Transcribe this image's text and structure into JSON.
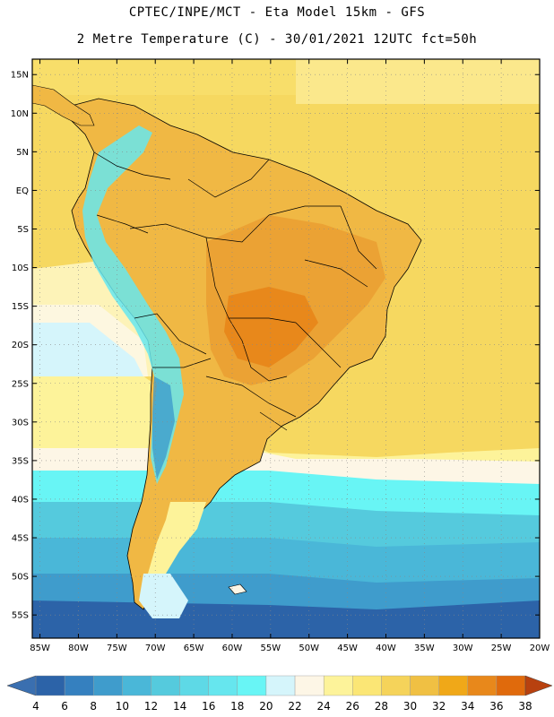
{
  "header": {
    "line1": "CPTEC/INPE/MCT -  Eta Model 15km - GFS",
    "line2": "2 Metre Temperature (C) - 30/01/2021 12UTC fct=50h"
  },
  "map": {
    "lat_labels": [
      "15N",
      "10N",
      "5N",
      "EQ",
      "5S",
      "10S",
      "15S",
      "20S",
      "25S",
      "30S",
      "35S",
      "40S",
      "45S",
      "50S",
      "55S"
    ],
    "lat_values": [
      15,
      10,
      5,
      0,
      -5,
      -10,
      -15,
      -20,
      -25,
      -30,
      -35,
      -40,
      -45,
      -50,
      -55
    ],
    "lon_labels": [
      "85W",
      "80W",
      "75W",
      "70W",
      "65W",
      "60W",
      "55W",
      "50W",
      "45W",
      "40W",
      "35W",
      "30W",
      "25W",
      "20W"
    ],
    "lon_values": [
      -85,
      -80,
      -75,
      -70,
      -65,
      -60,
      -55,
      -50,
      -45,
      -40,
      -35,
      -30,
      -25,
      -20
    ],
    "lon_range": [
      -86,
      -20
    ],
    "lat_range": [
      -58,
      17
    ]
  },
  "colorbar": {
    "labels": [
      "4",
      "6",
      "8",
      "10",
      "12",
      "14",
      "16",
      "18",
      "20",
      "22",
      "24",
      "26",
      "28",
      "30",
      "32",
      "34",
      "36",
      "38"
    ],
    "low_color": "#3a6fb0",
    "high_color": "#b8410f",
    "colors": [
      "#2c63a8",
      "#3580bf",
      "#3f9ccc",
      "#4ab7d8",
      "#55cadd",
      "#5ed9e6",
      "#66e6ee",
      "#68f5f5",
      "#d5f5fb",
      "#fdf6e6",
      "#fdf39a",
      "#fbe675",
      "#f5d35a",
      "#f0c043",
      "#f0a818",
      "#e8881b",
      "#e06a0c",
      "#cc4a08",
      "#b8410f"
    ]
  },
  "colors": {
    "ocean_cold": "#3c78b4",
    "ocean_cool": "#4fc2dc",
    "ocean_mild": "#d5f5fb",
    "ocean_warm": "#fdf07a",
    "land_hot": "#f0b040",
    "land_very_hot": "#e8881b",
    "andes": "#66e6ee"
  }
}
